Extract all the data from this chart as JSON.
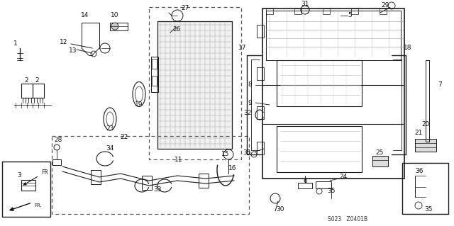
{
  "bg": "#ffffff",
  "lc": "#1a1a1a",
  "gc": "#888888",
  "fs": 6.5,
  "diagram_code": "S023   Z0401B",
  "figw": 6.4,
  "figh": 3.19,
  "dpi": 100
}
